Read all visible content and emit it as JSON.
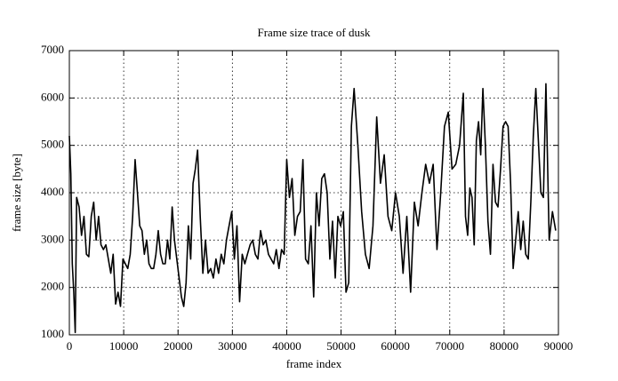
{
  "chart_data": {
    "type": "line",
    "title": "Frame size trace of dusk",
    "xlabel": "frame index",
    "ylabel": "frame size [byte]",
    "x": [
      0,
      270,
      540,
      810,
      1080,
      1340,
      1790,
      2240,
      2690,
      3140,
      3580,
      4030,
      4480,
      4930,
      5380,
      5820,
      6270,
      6720,
      7170,
      7620,
      8060,
      8510,
      8960,
      9410,
      9860,
      10300,
      10750,
      11200,
      11650,
      12100,
      12530,
      12950,
      13370,
      13800,
      14230,
      14650,
      15080,
      15510,
      15930,
      16360,
      16790,
      17210,
      17640,
      18070,
      18490,
      18920,
      19340,
      19770,
      20200,
      20620,
      21050,
      21480,
      21900,
      22330,
      22760,
      23180,
      23600,
      24080,
      24570,
      25050,
      25530,
      26010,
      26500,
      26980,
      27460,
      27950,
      28430,
      28910,
      29390,
      29880,
      30360,
      30840,
      31330,
      31810,
      32290,
      32770,
      33260,
      33740,
      34220,
      34700,
      35190,
      35670,
      36150,
      36640,
      37120,
      37600,
      38080,
      38570,
      39050,
      39530,
      40000,
      40500,
      40990,
      41490,
      41980,
      42480,
      42980,
      43470,
      43970,
      44460,
      44960,
      45460,
      45950,
      46450,
      46940,
      47440,
      47940,
      48430,
      48930,
      49420,
      49920,
      50420,
      50910,
      51410,
      51900,
      52400,
      53090,
      53790,
      54480,
      55170,
      55870,
      56560,
      57250,
      57940,
      58640,
      59330,
      60020,
      60720,
      61410,
      62100,
      62800,
      63490,
      64180,
      64880,
      65570,
      66260,
      66950,
      67650,
      68340,
      69030,
      69730,
      70420,
      71110,
      71810,
      72500,
      72900,
      73300,
      73700,
      74100,
      74500,
      74900,
      75300,
      75700,
      76100,
      76560,
      77030,
      77490,
      77960,
      78420,
      78880,
      79350,
      79810,
      80280,
      80740,
      81200,
      81670,
      82130,
      82600,
      83060,
      83520,
      83990,
      84450,
      84920,
      85380,
      85840,
      86310,
      86770,
      87240,
      87700,
      88300,
      88900,
      89500
    ],
    "values": [
      5200,
      4400,
      2500,
      1900,
      1050,
      3900,
      3700,
      3100,
      3500,
      2700,
      2650,
      3500,
      3800,
      3000,
      3500,
      2900,
      2800,
      2900,
      2600,
      2300,
      2700,
      1650,
      1900,
      1600,
      2600,
      2500,
      2400,
      2700,
      3500,
      4700,
      4000,
      3300,
      3200,
      2700,
      3000,
      2500,
      2400,
      2400,
      2700,
      3200,
      2700,
      2500,
      2500,
      3000,
      2600,
      3700,
      3000,
      2600,
      2200,
      1800,
      1600,
      2100,
      3300,
      2600,
      4200,
      4500,
      4900,
      3500,
      2300,
      3000,
      2300,
      2400,
      2200,
      2600,
      2300,
      2700,
      2500,
      3000,
      3300,
      3600,
      2600,
      3300,
      1700,
      2700,
      2500,
      2700,
      2900,
      3000,
      2700,
      2600,
      3200,
      2900,
      3000,
      2700,
      2600,
      2500,
      2800,
      2400,
      2800,
      2700,
      4700,
      3900,
      4300,
      3100,
      3500,
      3600,
      4700,
      2600,
      2500,
      3300,
      1800,
      4000,
      3300,
      4300,
      4400,
      4000,
      2600,
      3400,
      2200,
      3500,
      3300,
      3600,
      1900,
      2100,
      5400,
      6200,
      5000,
      3600,
      2700,
      2400,
      3300,
      5600,
      4200,
      4800,
      3500,
      3200,
      4000,
      3500,
      2300,
      3500,
      1900,
      3800,
      3300,
      4000,
      4600,
      4200,
      4600,
      2800,
      4000,
      5400,
      5700,
      4500,
      4600,
      5000,
      6100,
      3500,
      3100,
      4100,
      3900,
      2900,
      5100,
      5500,
      4800,
      6200,
      5000,
      3400,
      2700,
      4600,
      3800,
      3700,
      4500,
      5400,
      5500,
      5400,
      4200,
      2400,
      3000,
      3600,
      2800,
      3400,
      2700,
      2600,
      3800,
      5200,
      6200,
      5100,
      4000,
      3900,
      6300,
      3000,
      3600,
      3200
    ],
    "color": "#000000",
    "xlim": [
      0,
      90000
    ],
    "xticks": [
      0,
      10000,
      20000,
      30000,
      40000,
      50000,
      60000,
      70000,
      80000,
      90000
    ],
    "ylim": [
      1000,
      7000
    ],
    "yticks": [
      1000,
      2000,
      3000,
      4000,
      5000,
      6000,
      7000
    ],
    "grid": true
  }
}
